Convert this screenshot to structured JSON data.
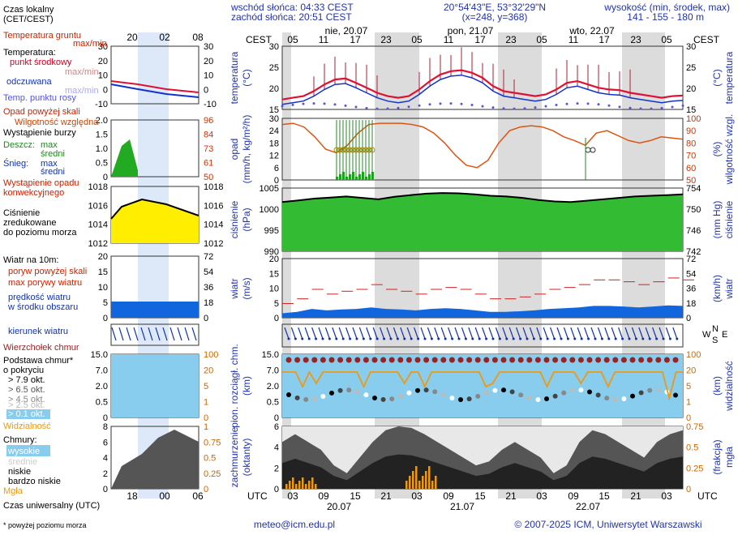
{
  "header": {
    "sunrise": "wschód słońca: 04:33 CEST",
    "sunset": "zachód słońca: 20:51 CEST",
    "coords": "20°54'43\"E, 53°32'29\"N",
    "grid": "(x=248, y=368)",
    "elev_label": "wysokość (min, środek, max)",
    "elev_values": "141 - 155 - 180 m",
    "tz_left": "CEST",
    "tz_right": "CEST",
    "utc_left": "UTC",
    "utc_right": "UTC"
  },
  "time_axis": {
    "days_top": [
      "nie, 20.07",
      "pon, 21.07",
      "wto, 22.07"
    ],
    "hours_top": [
      "05",
      "11",
      "17",
      "23",
      "05",
      "11",
      "17",
      "23",
      "05",
      "11",
      "17",
      "23",
      "05"
    ],
    "hours_bottom": [
      "03",
      "09",
      "15",
      "21",
      "03",
      "09",
      "15",
      "21",
      "03",
      "09",
      "15",
      "21",
      "03"
    ],
    "dates_bottom": [
      "20.07",
      "21.07",
      "22.07"
    ]
  },
  "legend": {
    "local_time": "Czas lokalny",
    "local_time_sub": "(CET/CEST)",
    "mini_hours_top": [
      "20",
      "02",
      "08"
    ],
    "mini_hours_bottom": [
      "18",
      "00",
      "06"
    ],
    "utc_time": "Czas uniwersalny (UTC)",
    "temp_ground": "Temperatura gruntu",
    "temp_ground_sub": "max/min",
    "temp": "Temperatura:",
    "temp_mid": "punkt środkowy",
    "temp_maxmin": "max/min",
    "temp_feel": "odczuwana",
    "temp_feel_maxmin": "max/min",
    "temp_dew": "Temp. punktu rosy",
    "fall_over": "Opad powyżej skali",
    "humidity": "Wilgotność względna",
    "storm": "Wystąpienie burzy",
    "rain": "Deszcz:",
    "rain_max": "max",
    "rain_mean": "średni",
    "snow": "Śnieg:",
    "snow_max": "max",
    "snow_mean": "średni",
    "conv": "Wystąpienie opadu",
    "conv2": "konwekcyjnego",
    "pressure1": "Ciśnienie",
    "pressure2": "zredukowane",
    "pressure3": "do poziomu morza",
    "wind": "Wiatr na 10m:",
    "gust_over": "poryw powyżej skali",
    "gust_max": "max porywy wiatru",
    "wind_speed": "prędkość wiatru",
    "wind_area": "w środku obszaru",
    "wind_dir": "kierunek wiatru",
    "cloud_top": "Wierzchołek chmur",
    "cloud_base": "Podstawa chmur*",
    "cloud_base2": "o pokryciu",
    "cov1": "> 7.9 okt.",
    "cov2": "> 6.5 okt.",
    "cov3": "> 4.5 okt.",
    "cov4": "> 2.5 okt.",
    "cov5": "> 0.1 okt.",
    "visibility": "Widzialność",
    "clouds": "Chmury:",
    "c_high": "wysokie",
    "c_mid": "średnie",
    "c_low": "niskie",
    "c_vlow": "bardzo niskie",
    "fog": "Mgła",
    "footnote": "* powyżej poziomu morza"
  },
  "panels": {
    "temp": {
      "ylabel": "temperatura",
      "unit": "(°C)",
      "ticks": [
        "30",
        "25",
        "20",
        "15"
      ],
      "rticks": [
        "30",
        "25",
        "20",
        "15"
      ]
    },
    "precip": {
      "ylabel": "opad",
      "unit": "(mm/h, kg/m²/h)",
      "ticks": [
        "30",
        "24",
        "18",
        "12",
        "6",
        "0"
      ],
      "rlabel": "wilgotność wzgl.",
      "runit": "(%)",
      "rticks": [
        "100",
        "90",
        "80",
        "70",
        "60",
        "50"
      ]
    },
    "pressure": {
      "ylabel": "ciśnienie",
      "unit": "(hPa)",
      "ticks": [
        "1005",
        "1000",
        "995",
        "990"
      ],
      "rlabel": "ciśnienie",
      "runit": "(mm Hg)",
      "rticks": [
        "754",
        "750",
        "746",
        "742"
      ]
    },
    "wind": {
      "ylabel": "wiatr",
      "unit": "(m/s)",
      "ticks": [
        "20",
        "15",
        "10",
        "5",
        "0"
      ],
      "rlabel": "wiatr",
      "runit": "(km/h)",
      "rticks": [
        "72",
        "54",
        "36",
        "18",
        "0"
      ]
    },
    "cloudbase": {
      "ylabel": "pion. rozciągł. chm.",
      "unit": "(km)",
      "ticks": [
        "15.0",
        "7.0",
        "2.0",
        "0.5",
        "0"
      ],
      "rlabel": "widzialność",
      "runit": "(km)",
      "rticks": [
        "100",
        "20",
        "5",
        "1",
        "0"
      ]
    },
    "cloudcover": {
      "ylabel": "zachmurzenie",
      "unit": "(oktanty)",
      "ticks": [
        "6",
        "4",
        "2",
        "0"
      ],
      "rlabel": "mgła",
      "runit": "(frakcja)",
      "rticks": [
        "0.75",
        "0.5",
        "0.25",
        "0"
      ]
    },
    "winddir": {
      "labels": [
        "W",
        "N",
        "S",
        "E"
      ]
    }
  },
  "mini_ticks": {
    "temp_l": [
      "30",
      "20",
      "10",
      "0",
      "-10"
    ],
    "temp_r": [
      "30",
      "20",
      "10",
      "0",
      "-10"
    ],
    "precip_l": [
      "2.0",
      "1.5",
      "1.0",
      "0.5",
      "0"
    ],
    "precip_r": [
      "96",
      "84",
      "73",
      "61",
      "50"
    ],
    "press_l": [
      "1018",
      "1016",
      "1014",
      "1012"
    ],
    "press_r": [
      "1018",
      "1016",
      "1014",
      "1012"
    ],
    "wind_l": [
      "20",
      "15",
      "10",
      "5",
      "0"
    ],
    "wind_r": [
      "72",
      "54",
      "36",
      "18",
      "0"
    ],
    "cb_l": [
      "15.0",
      "7.0",
      "2.0",
      "0.5",
      "0"
    ],
    "cb_r": [
      "100",
      "20",
      "5",
      "1",
      "0"
    ],
    "cc_l": [
      "8",
      "6",
      "4",
      "2",
      "0"
    ],
    "cc_r": [
      "1",
      "0.75",
      "0.5",
      "0.25",
      "0"
    ]
  },
  "footer": {
    "email": "meteo@icm.edu.pl",
    "copyright": "© 2007-2025 ICM, Uniwersytet Warszawski"
  },
  "colors": {
    "temp_line": "#dd0022",
    "dew": "#4444cc",
    "pressure_fill": "#22aa22",
    "wind_fill": "#1166dd",
    "cloud_bg": "#88ccee",
    "humidity": "#dd5511",
    "vis": "#ee9911",
    "night": "#d9d9d9"
  },
  "chart_data": [
    {
      "type": "line",
      "title": "temperatura",
      "x_hours": [
        0,
        6,
        12,
        18,
        24,
        30,
        36,
        42,
        48,
        54,
        60,
        66,
        72
      ],
      "series": [
        {
          "name": "punkt środkowy",
          "values": [
            16,
            19,
            22,
            20,
            17,
            19,
            24,
            23,
            17,
            18,
            21,
            18,
            17
          ]
        }
      ],
      "ylim": [
        13,
        32
      ]
    },
    {
      "type": "line",
      "title": "ciśnienie",
      "x_hours": [
        0,
        12,
        24,
        36,
        48,
        60,
        72
      ],
      "series": [
        {
          "values": [
            1004,
            1005,
            1006,
            1006,
            1004,
            1005,
            1006
          ]
        }
      ],
      "ylim": [
        990,
        1008
      ]
    },
    {
      "type": "area",
      "title": "wiatr",
      "x_hours": [
        0,
        12,
        24,
        36,
        48,
        60,
        72
      ],
      "series": [
        {
          "name": "prędkość wiatru",
          "values": [
            2.5,
            3,
            3,
            3.5,
            2,
            4,
            4
          ]
        },
        {
          "name": "max porywy wiatru",
          "values": [
            8,
            10,
            11,
            11,
            10,
            12,
            13
          ]
        }
      ],
      "ylim": [
        0,
        20
      ]
    }
  ]
}
